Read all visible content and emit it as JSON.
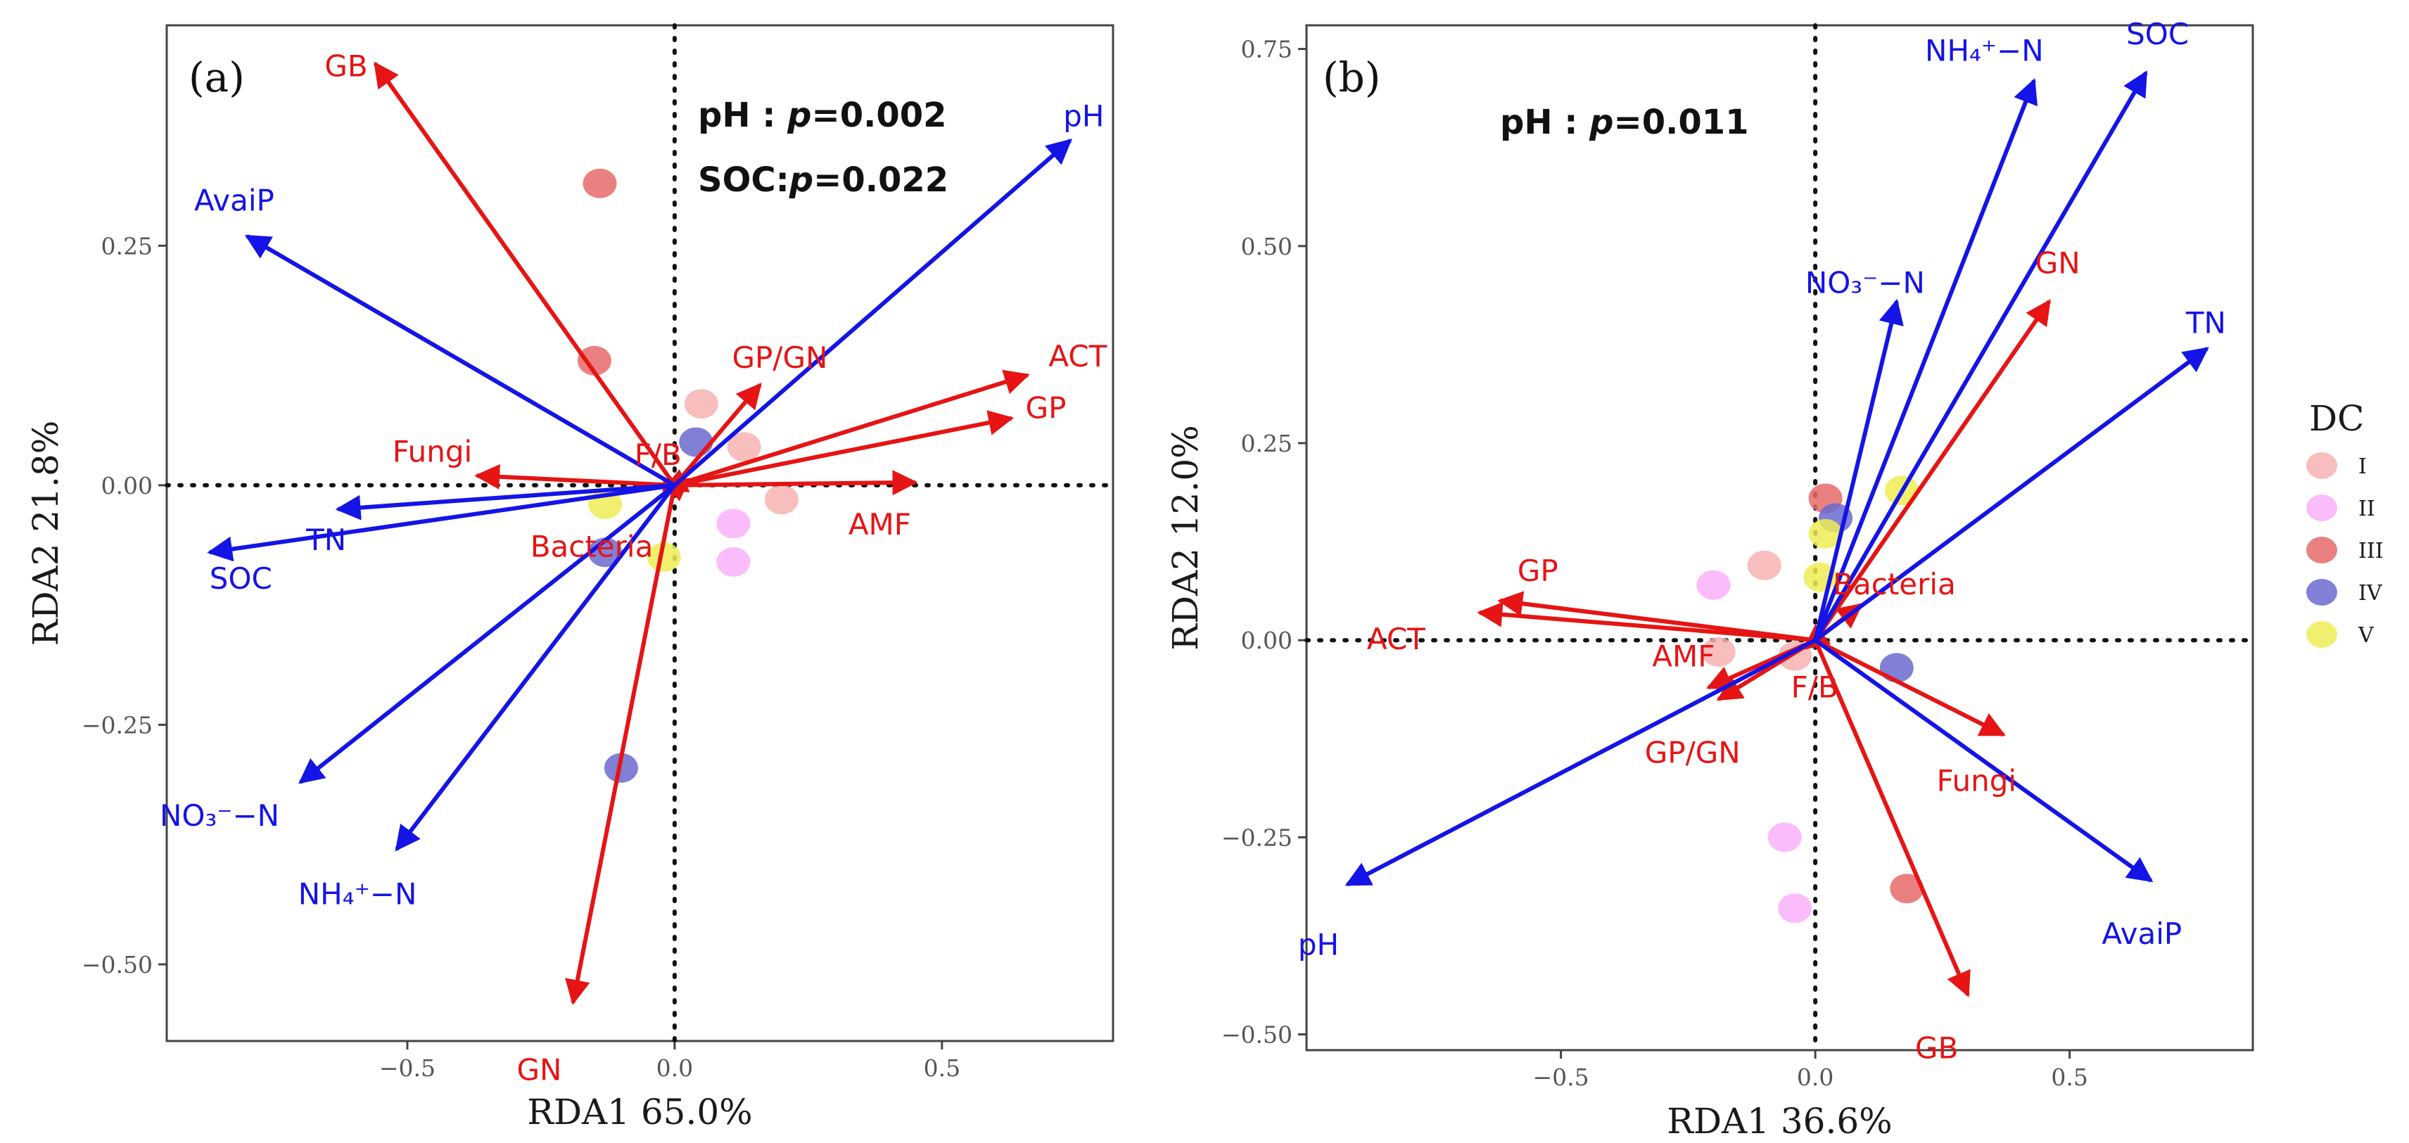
{
  "chart_data": [
    {
      "type": "scatter",
      "subtype": "rda-biplot",
      "panel": "(a)",
      "xlabel": "RDA1 65.0%",
      "ylabel": "RDA2 21.8%",
      "xlim": [
        -0.95,
        0.82
      ],
      "ylim": [
        -0.58,
        0.48
      ],
      "xticks": [
        -0.5,
        0.0,
        0.5
      ],
      "yticks": [
        0.25,
        0.0,
        -0.25,
        -0.5
      ],
      "xtick_labels": [
        "−0.5",
        "0.0",
        "0.5"
      ],
      "ytick_labels": [
        "0.25",
        "0.00",
        "−0.25",
        "−0.50"
      ],
      "stats": [
        {
          "var": "pH",
          "sep": " : ",
          "p": "p",
          "val": "=0.002"
        },
        {
          "var": "SOC",
          "sep": ":",
          "p": "p",
          "val": "=0.022"
        }
      ],
      "env_vectors": [
        {
          "name": "pH",
          "x": 0.74,
          "y": 0.36
        },
        {
          "name": "AvaiP",
          "x": -0.8,
          "y": 0.26
        },
        {
          "name": "TN",
          "x": -0.63,
          "y": -0.025
        },
        {
          "name": "SOC",
          "x": -0.87,
          "y": -0.07
        },
        {
          "name": "NO3-N",
          "x": -0.7,
          "y": -0.31
        },
        {
          "name": "NH4-N",
          "x": -0.52,
          "y": -0.38
        }
      ],
      "response_vectors": [
        {
          "name": "GB",
          "x": -0.56,
          "y": 0.44
        },
        {
          "name": "GP/GN",
          "x": 0.16,
          "y": 0.105
        },
        {
          "name": "ACT",
          "x": 0.66,
          "y": 0.115
        },
        {
          "name": "GP",
          "x": 0.63,
          "y": 0.07
        },
        {
          "name": "Fungi",
          "x": -0.37,
          "y": 0.01
        },
        {
          "name": "F/B",
          "x": -0.02,
          "y": 0.005
        },
        {
          "name": "Bacteria",
          "x": -0.02,
          "y": -0.005
        },
        {
          "name": "AMF",
          "x": 0.45,
          "y": 0.003
        },
        {
          "name": "GN",
          "x": -0.19,
          "y": -0.54
        }
      ],
      "samples": [
        {
          "group": "I",
          "x": 0.05,
          "y": 0.085
        },
        {
          "group": "I",
          "x": 0.13,
          "y": 0.04
        },
        {
          "group": "I",
          "x": 0.2,
          "y": -0.015
        },
        {
          "group": "II",
          "x": 0.11,
          "y": -0.04
        },
        {
          "group": "II",
          "x": 0.11,
          "y": -0.08
        },
        {
          "group": "III",
          "x": -0.14,
          "y": 0.315
        },
        {
          "group": "III",
          "x": -0.15,
          "y": 0.13
        },
        {
          "group": "IV",
          "x": 0.04,
          "y": 0.045
        },
        {
          "group": "IV",
          "x": -0.13,
          "y": -0.07
        },
        {
          "group": "IV",
          "x": -0.1,
          "y": -0.295
        },
        {
          "group": "V",
          "x": -0.13,
          "y": -0.02
        },
        {
          "group": "V",
          "x": -0.02,
          "y": -0.075
        }
      ]
    },
    {
      "type": "scatter",
      "subtype": "rda-biplot",
      "panel": "(b)",
      "xlabel": "RDA1 36.6%",
      "ylabel": "RDA2 12.0%",
      "xlim": [
        -1.0,
        0.86
      ],
      "ylim": [
        -0.52,
        0.78
      ],
      "xticks": [
        -0.5,
        0.0,
        0.5
      ],
      "yticks": [
        0.75,
        0.5,
        0.25,
        0.0,
        -0.25,
        -0.5
      ],
      "xtick_labels": [
        "−0.5",
        "0.0",
        "0.5"
      ],
      "ytick_labels": [
        "0.75",
        "0.50",
        "0.25",
        "0.00",
        "−0.25",
        "−0.50"
      ],
      "stats": [
        {
          "var": "pH",
          "sep": " : ",
          "p": "p",
          "val": "=0.011"
        }
      ],
      "env_vectors": [
        {
          "name": "NH4-N",
          "x": 0.43,
          "y": 0.71
        },
        {
          "name": "SOC",
          "x": 0.65,
          "y": 0.72
        },
        {
          "name": "NO3-N",
          "x": 0.16,
          "y": 0.43
        },
        {
          "name": "TN",
          "x": 0.77,
          "y": 0.37
        },
        {
          "name": "AvaiP",
          "x": 0.66,
          "y": -0.305
        },
        {
          "name": "pH",
          "x": -0.92,
          "y": -0.31
        }
      ],
      "response_vectors": [
        {
          "name": "GN",
          "x": 0.46,
          "y": 0.43
        },
        {
          "name": "Bacteria",
          "x": 0.09,
          "y": 0.045
        },
        {
          "name": "GP",
          "x": -0.62,
          "y": 0.05
        },
        {
          "name": "ACT",
          "x": -0.66,
          "y": 0.035
        },
        {
          "name": "AMF",
          "x": -0.21,
          "y": -0.06
        },
        {
          "name": "GP/GN",
          "x": -0.19,
          "y": -0.075
        },
        {
          "name": "F/B",
          "x": -0.02,
          "y": -0.01
        },
        {
          "name": "Fungi",
          "x": 0.37,
          "y": -0.12
        },
        {
          "name": "GB",
          "x": 0.3,
          "y": -0.45
        }
      ],
      "samples": [
        {
          "group": "I",
          "x": -0.1,
          "y": 0.095
        },
        {
          "group": "I",
          "x": -0.19,
          "y": -0.015
        },
        {
          "group": "I",
          "x": -0.04,
          "y": -0.02
        },
        {
          "group": "II",
          "x": -0.2,
          "y": 0.07
        },
        {
          "group": "II",
          "x": -0.06,
          "y": -0.25
        },
        {
          "group": "II",
          "x": -0.04,
          "y": -0.34
        },
        {
          "group": "III",
          "x": 0.02,
          "y": 0.18
        },
        {
          "group": "III",
          "x": 0.18,
          "y": -0.315
        },
        {
          "group": "IV",
          "x": 0.04,
          "y": 0.155
        },
        {
          "group": "IV",
          "x": 0.16,
          "y": -0.035
        },
        {
          "group": "V",
          "x": 0.17,
          "y": 0.19
        },
        {
          "group": "V",
          "x": 0.02,
          "y": 0.135
        },
        {
          "group": "V",
          "x": 0.01,
          "y": 0.08
        }
      ]
    }
  ],
  "label_text": {
    "pH": "pH",
    "AvaiP": "AvaiP",
    "TN": "TN",
    "SOC": "SOC",
    "NO3-N": "NO₃⁻−N",
    "NH4-N": "NH₄⁺−N",
    "GB": "GB",
    "GP/GN": "GP/GN",
    "ACT": "ACT",
    "GP": "GP",
    "Fungi": "Fungi",
    "F/B": "F/B",
    "Bacteria": "Bacteria",
    "AMF": "AMF",
    "GN": "GN"
  },
  "legend": {
    "title": "DC",
    "items": [
      {
        "group": "I",
        "label": "I",
        "color": "#F7B3B3"
      },
      {
        "group": "II",
        "label": "II",
        "color": "#FAB0FA"
      },
      {
        "group": "III",
        "label": "III",
        "color": "#E86A6A"
      },
      {
        "group": "IV",
        "label": "IV",
        "color": "#6A6AD0"
      },
      {
        "group": "V",
        "label": "V",
        "color": "#EDED55"
      }
    ]
  },
  "colors": {
    "env": "#1414E6",
    "response": "#E61414",
    "axes_frame": "#444444",
    "zero_line": "#111111"
  }
}
